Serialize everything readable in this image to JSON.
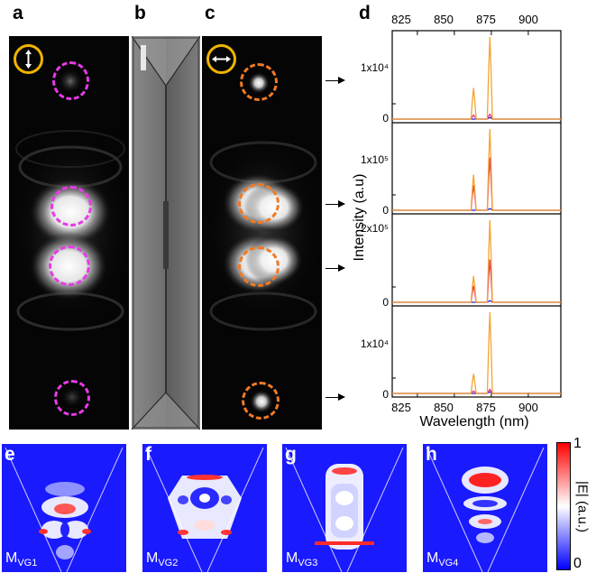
{
  "panels": {
    "a": "a",
    "b": "b",
    "c": "c",
    "d": "d",
    "e": "e",
    "f": "f",
    "g": "g",
    "h": "h"
  },
  "modes": [
    {
      "main": "M",
      "sub": "VG1"
    },
    {
      "main": "M",
      "sub": "VG2"
    },
    {
      "main": "M",
      "sub": "VG3"
    },
    {
      "main": "M",
      "sub": "VG4"
    }
  ],
  "colorbar": {
    "max_label": "1",
    "min_label": "0",
    "title": "|E| (a.u.)",
    "colors": [
      "#0000ff",
      "#ffffff",
      "#ff0000"
    ]
  },
  "colors": {
    "circle_a": "#e83ae8",
    "circle_c": "#f07a24",
    "polarizer": "#f0b400"
  },
  "chart_data": {
    "type": "line",
    "xlabel": "Wavelength (nm)",
    "ylabel": "Intensity (a.u)",
    "xlim": [
      808,
      922
    ],
    "xticks": [
      825,
      850,
      875,
      900
    ],
    "xtick_labels": [
      "825",
      "850",
      "875",
      "900"
    ],
    "subplots": [
      {
        "ytick_labels": [
          "1x10⁴",
          "0"
        ],
        "series": [
          {
            "color": "#f4a430",
            "peaks": [
              {
                "x": 863,
                "y": 0.38
              },
              {
                "x": 874,
                "y": 1.0
              }
            ]
          },
          {
            "color": "#e0357a",
            "peaks": [
              {
                "x": 863,
                "y": 0.05
              },
              {
                "x": 874,
                "y": 0.06
              }
            ]
          },
          {
            "color": "#2222cc",
            "peaks": [
              {
                "x": 874,
                "y": 0.02
              }
            ]
          }
        ]
      },
      {
        "ytick_labels": [
          "1x10⁵",
          "0"
        ],
        "series": [
          {
            "color": "#f4a430",
            "peaks": [
              {
                "x": 863,
                "y": 0.44
              },
              {
                "x": 874,
                "y": 1.0
              }
            ]
          },
          {
            "color": "#e0357a",
            "peaks": [
              {
                "x": 863,
                "y": 0.31
              },
              {
                "x": 874,
                "y": 0.65
              }
            ]
          },
          {
            "color": "#2222cc",
            "peaks": [
              {
                "x": 874,
                "y": 0.02
              }
            ]
          }
        ]
      },
      {
        "ytick_labels": [
          "2x10⁵",
          "0"
        ],
        "series": [
          {
            "color": "#f4a430",
            "peaks": [
              {
                "x": 863,
                "y": 0.32
              },
              {
                "x": 874,
                "y": 1.0
              }
            ]
          },
          {
            "color": "#e0357a",
            "peaks": [
              {
                "x": 863,
                "y": 0.2
              },
              {
                "x": 874,
                "y": 0.52
              }
            ]
          },
          {
            "color": "#2222cc",
            "peaks": [
              {
                "x": 874,
                "y": 0.02
              }
            ]
          }
        ]
      },
      {
        "ytick_labels": [
          "1x10⁴",
          "0"
        ],
        "series": [
          {
            "color": "#f4a430",
            "peaks": [
              {
                "x": 863,
                "y": 0.24
              },
              {
                "x": 874,
                "y": 1.0
              }
            ]
          },
          {
            "color": "#e0357a",
            "peaks": [
              {
                "x": 863,
                "y": 0.03
              },
              {
                "x": 874,
                "y": 0.05
              }
            ]
          },
          {
            "color": "#2222cc",
            "peaks": [
              {
                "x": 874,
                "y": 0.02
              }
            ]
          }
        ]
      }
    ]
  }
}
